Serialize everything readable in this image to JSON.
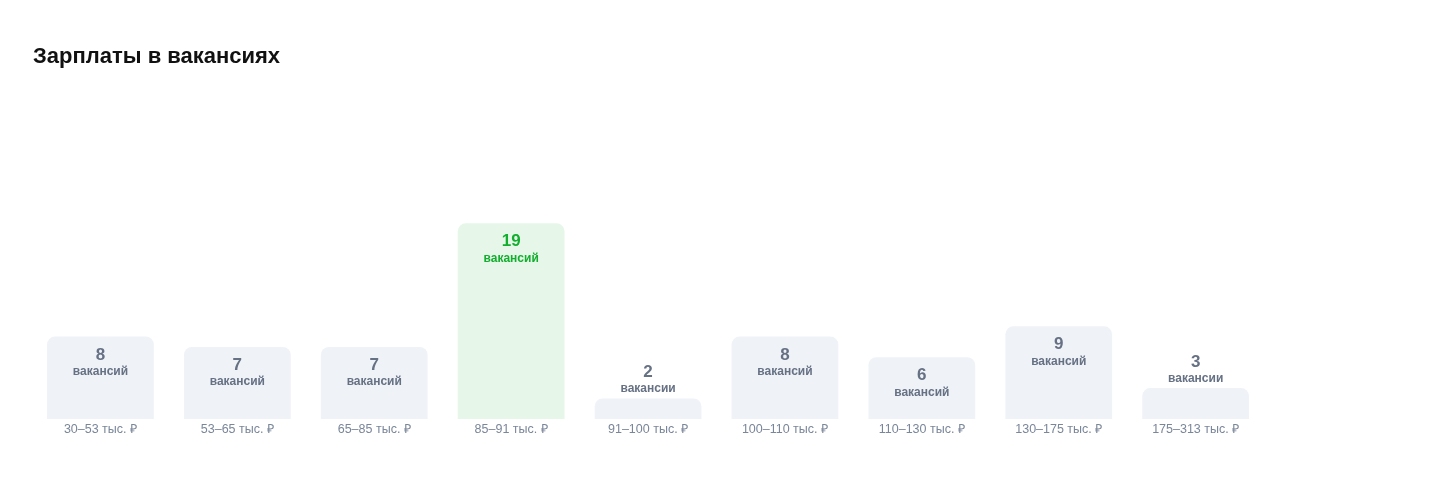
{
  "chart_data": {
    "type": "bar",
    "title": "Зарплаты в вакансиях",
    "categories": [
      "30–53 тыс. ₽",
      "53–65 тыс. ₽",
      "65–85 тыс. ₽",
      "85–91 тыс. ₽",
      "91–100 тыс. ₽",
      "100–110 тыс. ₽",
      "110–130 тыс. ₽",
      "130–175 тыс. ₽",
      "175–313 тыс. ₽",
      null
    ],
    "values": [
      8,
      7,
      7,
      19,
      2,
      8,
      6,
      9,
      3,
      null
    ],
    "colors": [
      "#eff2f7",
      "#eff2f7",
      "#eff2f7",
      "#e6f7e9",
      "#eff2f7",
      "#eff2f7",
      "#eff2f7",
      "#eff2f7",
      "#eff2f7",
      "#eff2f7"
    ],
    "value_labels": [
      "8\nвакансий",
      "7\nвакансий",
      "7\nвакансий",
      "19\nвакансий",
      "2\nвакансии",
      "8\nвакансий",
      "6\nвакансий",
      "9\nвакансий",
      "3\nвакансии",
      null
    ]
  }
}
